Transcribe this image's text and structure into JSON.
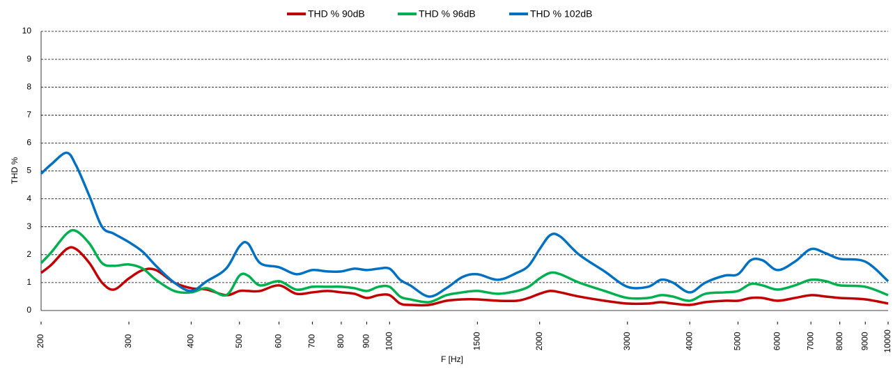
{
  "chart_data": {
    "type": "line",
    "xlabel": "F [Hz]",
    "ylabel": "THD %",
    "xscale": "log",
    "grid": true,
    "legend": "top",
    "x": [
      200,
      210,
      225,
      235,
      250,
      265,
      280,
      300,
      320,
      340,
      370,
      400,
      430,
      470,
      500,
      520,
      550,
      600,
      650,
      700,
      750,
      800,
      850,
      900,
      950,
      1000,
      1050,
      1100,
      1200,
      1300,
      1400,
      1500,
      1650,
      1800,
      1900,
      2000,
      2100,
      2200,
      2400,
      2700,
      3000,
      3300,
      3500,
      3700,
      4000,
      4300,
      4700,
      5000,
      5300,
      5600,
      6000,
      6500,
      7000,
      7500,
      8000,
      9000,
      10000
    ],
    "series": [
      {
        "name": "THD % 90dB",
        "color": "#c00000",
        "values": [
          1.35,
          1.65,
          2.2,
          2.2,
          1.7,
          1.0,
          0.75,
          1.15,
          1.45,
          1.45,
          1.0,
          0.8,
          0.75,
          0.55,
          0.7,
          0.7,
          0.7,
          0.9,
          0.6,
          0.65,
          0.7,
          0.65,
          0.6,
          0.45,
          0.55,
          0.55,
          0.25,
          0.2,
          0.2,
          0.35,
          0.4,
          0.4,
          0.35,
          0.35,
          0.45,
          0.6,
          0.7,
          0.65,
          0.5,
          0.35,
          0.25,
          0.25,
          0.3,
          0.25,
          0.2,
          0.3,
          0.35,
          0.35,
          0.45,
          0.45,
          0.35,
          0.45,
          0.55,
          0.5,
          0.45,
          0.4,
          0.25
        ]
      },
      {
        "name": "THD % 96dB",
        "color": "#00b050",
        "values": [
          1.7,
          2.1,
          2.75,
          2.85,
          2.4,
          1.7,
          1.6,
          1.65,
          1.5,
          1.1,
          0.7,
          0.65,
          0.8,
          0.55,
          1.25,
          1.25,
          0.9,
          1.05,
          0.75,
          0.85,
          0.85,
          0.85,
          0.8,
          0.7,
          0.85,
          0.85,
          0.5,
          0.4,
          0.3,
          0.55,
          0.65,
          0.7,
          0.6,
          0.7,
          0.85,
          1.15,
          1.35,
          1.3,
          1.0,
          0.7,
          0.45,
          0.45,
          0.55,
          0.5,
          0.35,
          0.6,
          0.65,
          0.7,
          0.95,
          0.9,
          0.75,
          0.9,
          1.1,
          1.05,
          0.9,
          0.85,
          0.55
        ]
      },
      {
        "name": "THD % 102dB",
        "color": "#0070c0",
        "values": [
          4.9,
          5.25,
          5.65,
          5.2,
          4.1,
          3.0,
          2.75,
          2.45,
          2.1,
          1.6,
          1.0,
          0.7,
          1.05,
          1.5,
          2.3,
          2.4,
          1.7,
          1.55,
          1.3,
          1.45,
          1.4,
          1.4,
          1.5,
          1.45,
          1.5,
          1.5,
          1.1,
          0.9,
          0.5,
          0.8,
          1.2,
          1.3,
          1.1,
          1.35,
          1.6,
          2.2,
          2.7,
          2.65,
          2.0,
          1.4,
          0.85,
          0.85,
          1.1,
          1.0,
          0.65,
          1.0,
          1.25,
          1.3,
          1.8,
          1.8,
          1.45,
          1.75,
          2.2,
          2.05,
          1.85,
          1.75,
          1.05
        ]
      }
    ],
    "xlim": [
      200,
      10000
    ],
    "xticks": [
      200,
      300,
      400,
      500,
      600,
      700,
      800,
      900,
      1000,
      1500,
      2000,
      3000,
      4000,
      5000,
      6000,
      7000,
      8000,
      9000,
      10000
    ],
    "ylim": [
      0,
      10
    ],
    "yticks": [
      0,
      1,
      2,
      3,
      4,
      5,
      6,
      7,
      8,
      9,
      10
    ]
  }
}
